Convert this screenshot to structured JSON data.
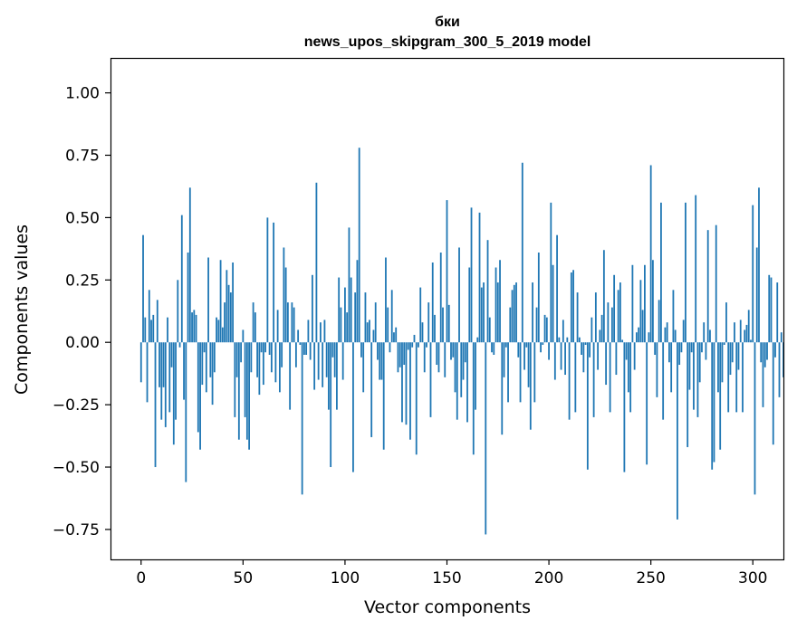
{
  "chart_data": {
    "type": "bar",
    "title_line1": "бки",
    "title_line2": "news_upos_skipgram_300_5_2019 model",
    "xlabel": "Vector components",
    "ylabel": "Components values",
    "xlim": [
      -15,
      315
    ],
    "ylim": [
      -0.87,
      1.14
    ],
    "xticks": [
      0,
      50,
      100,
      150,
      200,
      250,
      300
    ],
    "xtick_labels": [
      "0",
      "50",
      "100",
      "150",
      "200",
      "250",
      "300"
    ],
    "yticks": [
      -0.75,
      -0.5,
      -0.25,
      0.0,
      0.25,
      0.5,
      0.75,
      1.0
    ],
    "ytick_labels": [
      "−0.75",
      "−0.50",
      "−0.25",
      "0.00",
      "0.25",
      "0.50",
      "0.75",
      "1.00"
    ],
    "bar_color": "#1f77b4",
    "values": [
      -0.16,
      0.43,
      0.1,
      -0.24,
      0.21,
      0.09,
      0.11,
      -0.5,
      0.17,
      -0.18,
      -0.31,
      -0.18,
      -0.34,
      0.1,
      -0.28,
      -0.1,
      -0.41,
      -0.31,
      0.25,
      -0.02,
      0.51,
      -0.23,
      -0.56,
      0.36,
      0.62,
      0.12,
      0.13,
      0.11,
      -0.36,
      -0.43,
      -0.17,
      -0.04,
      -0.2,
      0.34,
      -0.14,
      -0.25,
      -0.12,
      0.1,
      0.09,
      0.33,
      0.06,
      0.16,
      0.29,
      0.23,
      0.2,
      0.32,
      -0.3,
      -0.14,
      -0.39,
      -0.08,
      0.05,
      -0.3,
      -0.39,
      -0.43,
      -0.12,
      0.16,
      0.12,
      -0.14,
      -0.21,
      -0.04,
      -0.17,
      -0.04,
      0.5,
      -0.05,
      -0.12,
      0.48,
      -0.16,
      0.13,
      -0.2,
      -0.1,
      0.38,
      0.3,
      0.16,
      -0.27,
      0.16,
      0.14,
      -0.1,
      0.05,
      -0.01,
      -0.61,
      -0.05,
      -0.05,
      0.09,
      -0.07,
      0.27,
      -0.19,
      0.64,
      -0.15,
      0.08,
      -0.18,
      0.09,
      -0.14,
      -0.27,
      -0.5,
      -0.06,
      -0.14,
      -0.27,
      0.26,
      0.14,
      -0.15,
      0.22,
      0.12,
      0.46,
      0.26,
      -0.52,
      0.2,
      0.33,
      0.78,
      -0.06,
      -0.2,
      0.2,
      0.08,
      0.09,
      -0.38,
      0.05,
      0.16,
      -0.07,
      -0.15,
      -0.15,
      -0.43,
      0.34,
      0.14,
      -0.04,
      0.21,
      0.04,
      0.06,
      -0.12,
      -0.1,
      -0.32,
      -0.09,
      -0.33,
      -0.03,
      -0.39,
      -0.02,
      0.03,
      -0.45,
      -0.02,
      0.22,
      0.08,
      -0.12,
      -0.02,
      0.16,
      -0.3,
      0.32,
      0.11,
      -0.09,
      -0.12,
      0.36,
      0.14,
      -0.14,
      0.57,
      0.15,
      -0.07,
      -0.06,
      -0.2,
      -0.31,
      0.38,
      -0.22,
      -0.15,
      -0.08,
      -0.32,
      0.3,
      0.54,
      -0.45,
      -0.27,
      0.02,
      0.52,
      0.22,
      0.24,
      -0.77,
      0.41,
      0.1,
      -0.04,
      -0.05,
      0.3,
      0.24,
      0.33,
      -0.37,
      -0.14,
      -0.02,
      -0.24,
      0.14,
      0.21,
      0.23,
      0.24,
      -0.06,
      -0.24,
      0.72,
      -0.11,
      -0.02,
      -0.18,
      -0.35,
      0.24,
      -0.24,
      0.14,
      0.36,
      -0.04,
      -0.01,
      0.11,
      0.1,
      -0.07,
      0.56,
      0.31,
      -0.15,
      0.43,
      0.02,
      -0.11,
      0.09,
      -0.13,
      0.02,
      -0.31,
      0.28,
      0.29,
      -0.28,
      0.2,
      0.02,
      -0.05,
      -0.12,
      -0.01,
      -0.51,
      -0.06,
      0.1,
      -0.3,
      0.2,
      -0.11,
      0.05,
      0.11,
      0.37,
      -0.17,
      0.16,
      -0.28,
      0.14,
      0.27,
      -0.13,
      0.21,
      0.24,
      0.01,
      -0.52,
      -0.07,
      -0.2,
      -0.28,
      0.31,
      -0.11,
      0.04,
      0.06,
      0.25,
      0.13,
      0.31,
      -0.49,
      0.04,
      0.71,
      0.33,
      -0.05,
      -0.22,
      0.17,
      0.56,
      -0.31,
      0.06,
      0.08,
      -0.08,
      -0.2,
      0.21,
      0.05,
      -0.71,
      -0.09,
      -0.04,
      0.09,
      0.56,
      -0.42,
      -0.19,
      -0.04,
      -0.27,
      0.59,
      -0.3,
      -0.16,
      -0.04,
      0.08,
      -0.07,
      0.45,
      0.05,
      -0.51,
      -0.48,
      0.47,
      -0.2,
      -0.43,
      -0.16,
      -0.01,
      0.16,
      -0.28,
      -0.13,
      -0.08,
      0.08,
      -0.28,
      -0.11,
      0.09,
      -0.28,
      0.05,
      0.07,
      0.13,
      0.01,
      0.55,
      -0.61,
      0.38,
      0.62,
      -0.08,
      -0.26,
      -0.1,
      -0.07,
      0.27,
      0.26,
      -0.41,
      -0.06,
      0.24,
      -0.22,
      0.04,
      -0.14
    ]
  }
}
